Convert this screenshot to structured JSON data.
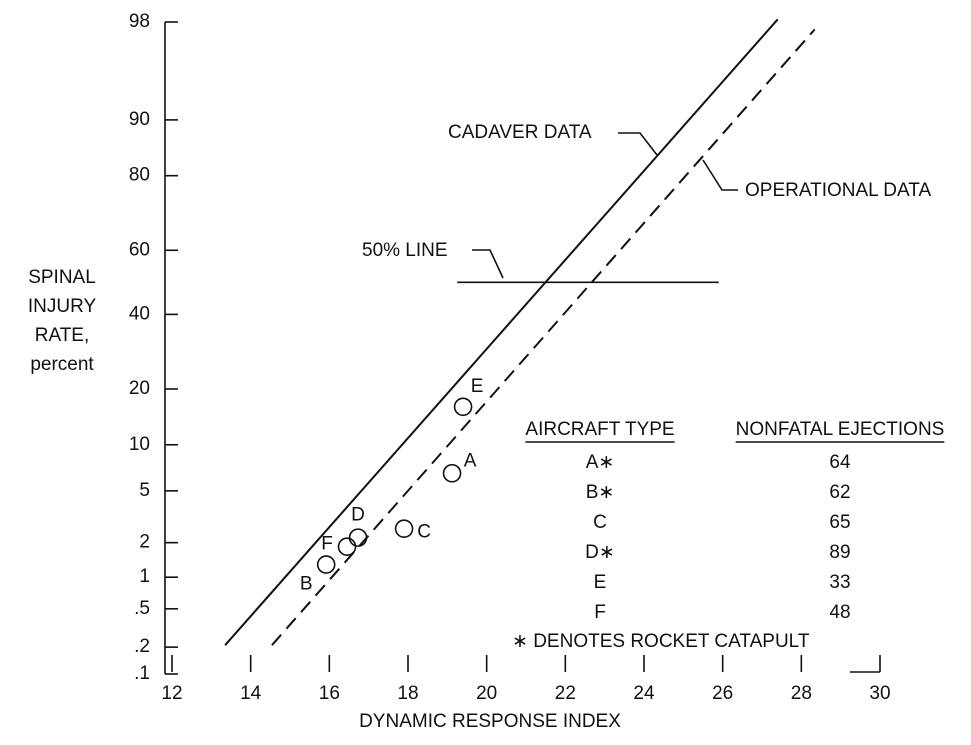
{
  "chart_data": {
    "type": "probability-plot",
    "ylabel": [
      "SPINAL",
      "INJURY",
      "RATE,",
      "percent"
    ],
    "xlabel": "DYNAMIC RESPONSE INDEX",
    "yscale": "probability",
    "xlim": [
      12,
      30
    ],
    "xticks": [
      12,
      14,
      16,
      18,
      20,
      22,
      24,
      26,
      28,
      30
    ],
    "ylim": [
      0.1,
      98
    ],
    "yticks": [
      {
        "value": 0.1,
        "label": ".1"
      },
      {
        "value": 0.2,
        "label": ".2"
      },
      {
        "value": 0.5,
        "label": ".5"
      },
      1,
      2,
      5,
      10,
      20,
      40,
      60,
      80,
      90,
      98
    ],
    "series": [
      {
        "name": "CADAVER DATA",
        "style": "solid",
        "color": "#111111",
        "x": [
          13.35,
          27.4
        ],
        "values": [
          0.21,
          98.1
        ]
      },
      {
        "name": "OPERATIONAL DATA",
        "style": "dashed",
        "color": "#111111",
        "x": [
          14.54,
          28.34
        ],
        "values": [
          0.21,
          97.7
        ]
      }
    ],
    "reference_line": {
      "label": "50% LINE",
      "x": [
        19.25,
        25.9
      ],
      "value": 50
    },
    "points": {
      "labels": [
        "A",
        "B",
        "C",
        "D",
        "E",
        "F"
      ],
      "x": [
        19.12,
        15.92,
        17.9,
        16.73,
        19.4,
        16.45
      ],
      "values": [
        6.6,
        1.3,
        2.6,
        2.2,
        16.3,
        1.85
      ]
    },
    "table": {
      "header": [
        "AIRCRAFT TYPE",
        "NONFATAL EJECTIONS"
      ],
      "rows": [
        [
          "A∗",
          "64"
        ],
        [
          "B∗",
          "62"
        ],
        [
          "C",
          "65"
        ],
        [
          "D∗",
          "89"
        ],
        [
          "E",
          "33"
        ],
        [
          "F",
          "48"
        ]
      ],
      "footnote": "∗ DENOTES ROCKET CATAPULT"
    }
  }
}
